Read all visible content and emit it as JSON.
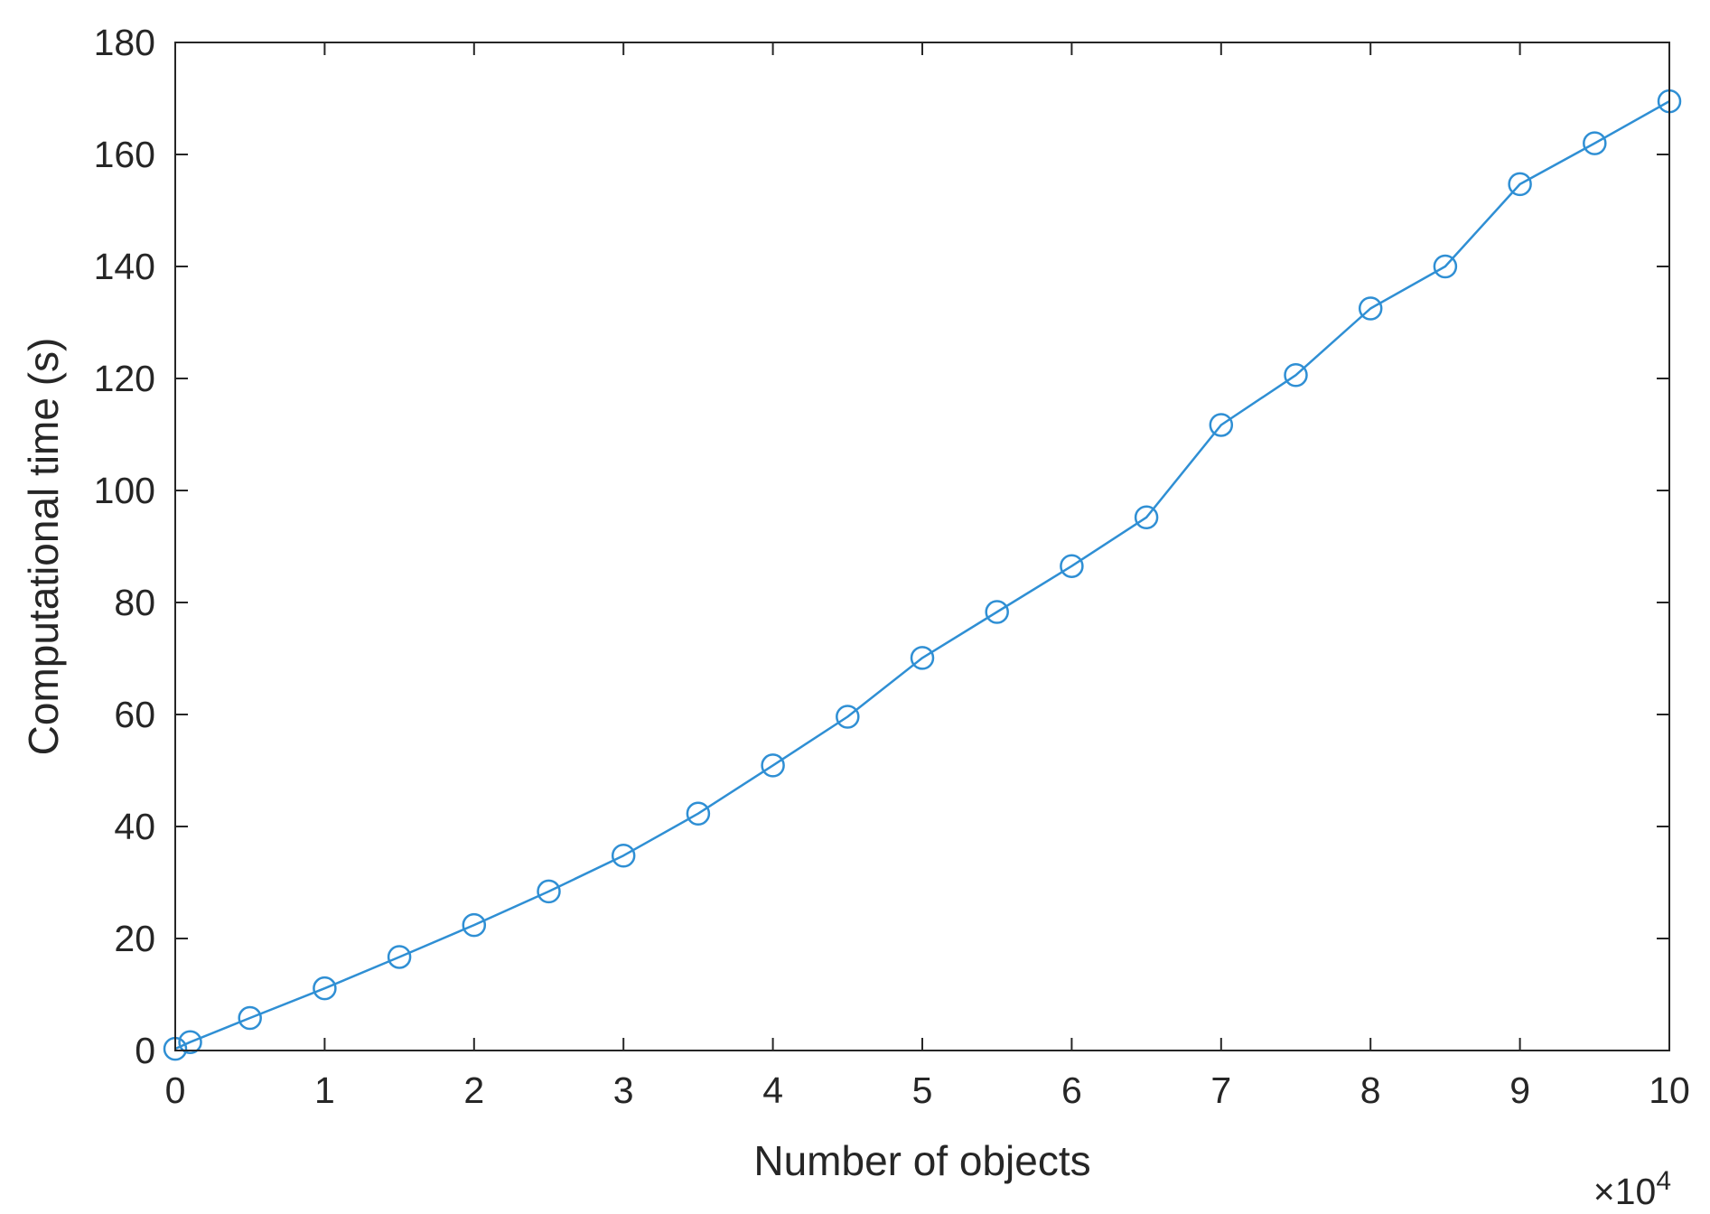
{
  "chart_data": {
    "type": "line",
    "xlabel": "Number of objects",
    "ylabel": "Computational time (s)",
    "x_multiplier": {
      "base": "10",
      "exponent": "4",
      "times": "×"
    },
    "xlim": [
      0,
      100000
    ],
    "ylim": [
      0,
      180
    ],
    "x_ticks": [
      0,
      10000,
      20000,
      30000,
      40000,
      50000,
      60000,
      70000,
      80000,
      90000,
      100000
    ],
    "x_tick_labels": [
      "0",
      "1",
      "2",
      "3",
      "4",
      "5",
      "6",
      "7",
      "8",
      "9",
      "10"
    ],
    "y_ticks": [
      0,
      20,
      40,
      60,
      80,
      100,
      120,
      140,
      160,
      180
    ],
    "y_tick_labels": [
      "0",
      "20",
      "40",
      "60",
      "80",
      "100",
      "120",
      "140",
      "160",
      "180"
    ],
    "grid": false,
    "box": true,
    "line_color": "#2f8fd4",
    "marker": "circle",
    "series": [
      {
        "x": [
          0,
          1000,
          5000,
          10000,
          15000,
          20000,
          25000,
          30000,
          35000,
          40000,
          45000,
          50000,
          55000,
          60000,
          65000,
          70000,
          75000,
          80000,
          85000,
          90000,
          95000,
          100000
        ],
        "values": [
          0.3,
          1.5,
          5.8,
          11.1,
          16.7,
          22.4,
          28.4,
          34.8,
          42.3,
          50.9,
          59.6,
          70.1,
          78.3,
          86.5,
          95.2,
          111.7,
          120.6,
          132.5,
          140.0,
          154.7,
          162.0,
          169.5
        ]
      }
    ]
  }
}
